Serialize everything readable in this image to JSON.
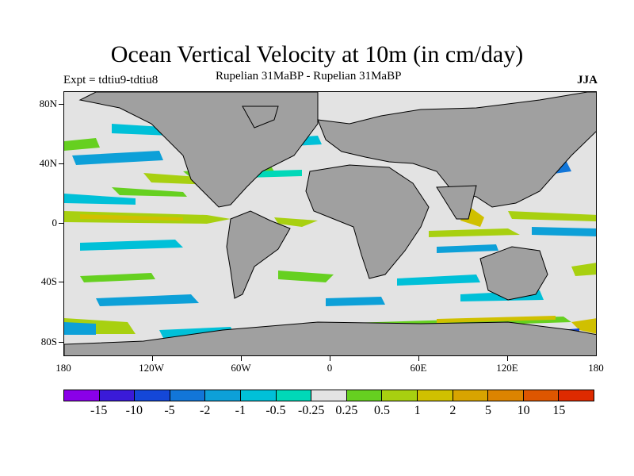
{
  "title": "Ocean Vertical Velocity at 10m (in cm/day)",
  "experiment": "Expt = tdtiu9-tdtiu8",
  "comparison": "Rupelian  31MaBP - Rupelian  31MaBP",
  "season": "JJA",
  "map": {
    "land_color": "#a0a0a0",
    "neutral_ocean_color": "#e3e3e3",
    "lat_labels": [
      "80N",
      "40N",
      "0",
      "40S",
      "80S"
    ],
    "lon_labels": [
      "180",
      "120W",
      "60W",
      "0",
      "60E",
      "120E",
      "180"
    ]
  },
  "colorbar": {
    "colors": [
      "#8a00e8",
      "#3a1ad8",
      "#1447d8",
      "#1276d8",
      "#0da0d8",
      "#00c0d8",
      "#00d8b8",
      "#e3e3e3",
      "#66d020",
      "#a8d010",
      "#d0c000",
      "#d8a400",
      "#dc8400",
      "#de5600",
      "#de2a00"
    ],
    "labels": [
      "-15",
      "-10",
      "-5",
      "-2",
      "-1",
      "-0.5",
      "-0.25",
      "0.25",
      "0.5",
      "1",
      "2",
      "5",
      "10",
      "15"
    ]
  }
}
